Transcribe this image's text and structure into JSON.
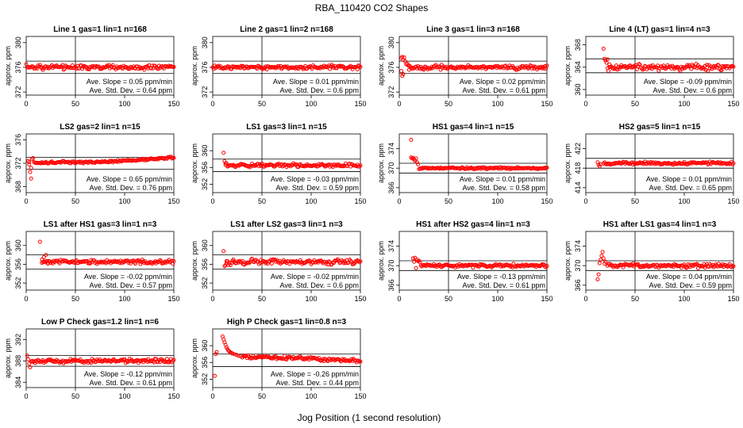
{
  "figure": {
    "title": "RBA_110420  CO2 Shapes",
    "xlabel": "Jog Position (1 second resolution)",
    "ylabel": "approx. ppm",
    "point_color": "#ff0000",
    "line_color": "#000000"
  },
  "chart_data": [
    {
      "type": "scatter",
      "title": "Line 1 gas=1 lin=1 n=168",
      "ylabel": "approx. ppm",
      "xlim": [
        0,
        150
      ],
      "ylim": [
        371.5,
        381
      ],
      "xticks": [
        0,
        50,
        100,
        150
      ],
      "yticks": [
        372,
        376,
        380
      ],
      "vline": 50,
      "hlines": [
        377,
        375
      ],
      "baseline": 376,
      "noise": 0.3,
      "start_x": 0,
      "slope_text": "Ave. Slope =  0.05  ppm/min",
      "std_text": "Ave. Std. Dev. =  0.64  ppm",
      "initial": [],
      "ramp": null,
      "start_seq": []
    },
    {
      "type": "scatter",
      "title": "Line 2 gas=1 lin=2 n=168",
      "ylabel": "approx. ppm",
      "xlim": [
        0,
        150
      ],
      "ylim": [
        371.5,
        381
      ],
      "xticks": [
        0,
        50,
        100,
        150
      ],
      "yticks": [
        372,
        376,
        380
      ],
      "vline": 50,
      "hlines": [
        377,
        375
      ],
      "baseline": 376,
      "noise": 0.25,
      "start_x": 0,
      "slope_text": "Ave. Slope =  0.01  ppm/min",
      "std_text": "Ave. Std. Dev. =  0.6  ppm",
      "initial": [],
      "ramp": null,
      "start_seq": []
    },
    {
      "type": "scatter",
      "title": "Line 3 gas=1 lin=3 n=168",
      "ylabel": "approx. ppm",
      "xlim": [
        0,
        150
      ],
      "ylim": [
        371.5,
        381
      ],
      "xticks": [
        0,
        50,
        100,
        150
      ],
      "yticks": [
        372,
        376,
        380
      ],
      "vline": 50,
      "hlines": [
        377,
        375
      ],
      "baseline": 376,
      "noise": 0.25,
      "start_x": 10,
      "slope_text": "Ave. Slope =  0.02  ppm/min",
      "std_text": "Ave. Std. Dev. =  0.61  ppm",
      "initial": [
        [
          2,
          377.5
        ],
        [
          3,
          377.7
        ],
        [
          4,
          377.2
        ],
        [
          5,
          377.6
        ],
        [
          6,
          377.0
        ],
        [
          7,
          376.5
        ],
        [
          3,
          374.6
        ],
        [
          4,
          374.9
        ],
        [
          2,
          375.4
        ],
        [
          8,
          376.6
        ],
        [
          9,
          376.3
        ],
        [
          10,
          375.6
        ]
      ],
      "ramp": null,
      "start_seq": []
    },
    {
      "type": "scatter",
      "title": "Line 4 (LT) gas=1 lin=4 n=3",
      "ylabel": "approx. ppm",
      "xlim": [
        0,
        150
      ],
      "ylim": [
        359,
        369.5
      ],
      "xticks": [
        0,
        50,
        100,
        150
      ],
      "yticks": [
        360,
        364,
        368
      ],
      "vline": 50,
      "hlines": [
        365.5,
        363
      ],
      "baseline": 364,
      "noise": 0.4,
      "start_x": 22,
      "slope_text": "Ave. Slope =  -0.09  ppm/min",
      "std_text": "Ave. Std. Dev. =  0.6  ppm",
      "initial": [
        [
          18,
          367.3
        ],
        [
          19,
          365.5
        ],
        [
          20,
          365.2
        ],
        [
          21,
          364.8
        ],
        [
          22,
          365.4
        ],
        [
          24,
          364.5
        ]
      ],
      "ramp": null,
      "start_seq": []
    },
    {
      "type": "scatter",
      "title": "LS2 gas=2 lin=1 n=15",
      "ylabel": "approx. ppm",
      "xlim": [
        0,
        150
      ],
      "ylim": [
        367,
        377
      ],
      "xticks": [
        0,
        50,
        100,
        150
      ],
      "yticks": [
        368,
        372,
        376
      ],
      "vline": 50,
      "hlines": [
        373,
        371
      ],
      "baseline": 372,
      "noise": 0.15,
      "start_x": 8,
      "slope_text": "Ave. Slope =  0.65  ppm/min",
      "std_text": "Ave. Std. Dev. =  0.76  ppm",
      "initial": [
        [
          2,
          372.4
        ],
        [
          3,
          371.8
        ],
        [
          4,
          370.5
        ],
        [
          5,
          369.4
        ],
        [
          6,
          372.7
        ],
        [
          7,
          372.9
        ],
        [
          3,
          372.2
        ],
        [
          5,
          371.2
        ]
      ],
      "ramp": [
        [
          8,
          372.1
        ],
        [
          80,
          372.2
        ],
        [
          150,
          373.0
        ]
      ],
      "start_seq": []
    },
    {
      "type": "scatter",
      "title": "LS1 gas=3 lin=1 n=15",
      "ylabel": "approx. ppm",
      "xlim": [
        0,
        150
      ],
      "ylim": [
        350,
        364
      ],
      "xticks": [
        0,
        50,
        100,
        150
      ],
      "yticks": [
        352,
        356,
        360
      ],
      "vline": 50,
      "hlines": [
        358,
        355
      ],
      "baseline": 356.5,
      "noise": 0.3,
      "start_x": 13,
      "slope_text": "Ave. Slope =  -0.03  ppm/min",
      "std_text": "Ave. Std. Dev. =  0.59  ppm",
      "initial": [
        [
          11,
          359.5
        ],
        [
          12,
          357.5
        ],
        [
          13,
          357.0
        ]
      ],
      "ramp": null,
      "start_seq": []
    },
    {
      "type": "scatter",
      "title": "HS1 gas=4 lin=1 n=15",
      "ylabel": "approx. ppm",
      "xlim": [
        0,
        150
      ],
      "ylim": [
        365,
        377
      ],
      "xticks": [
        0,
        50,
        100,
        150
      ],
      "yticks": [
        366,
        370,
        374
      ],
      "vline": 50,
      "hlines": [
        371,
        369
      ],
      "baseline": 370,
      "noise": 0.15,
      "start_x": 20,
      "slope_text": "Ave. Slope =  0.01  ppm/min",
      "std_text": "Ave. Std. Dev. =  0.58  ppm",
      "initial": [
        [
          12,
          375.8
        ],
        [
          12,
          372.2
        ],
        [
          13,
          372.0
        ],
        [
          14,
          372.1
        ],
        [
          15,
          371.8
        ],
        [
          16,
          371.5
        ],
        [
          17,
          372.0
        ],
        [
          18,
          371.2
        ],
        [
          19,
          370.8
        ]
      ],
      "ramp": null,
      "start_seq": []
    },
    {
      "type": "scatter",
      "title": "HS2 gas=5 lin=1 n=15",
      "ylabel": "approx. ppm",
      "xlim": [
        0,
        150
      ],
      "ylim": [
        413,
        425
      ],
      "xticks": [
        0,
        50,
        100,
        150
      ],
      "yticks": [
        414,
        418,
        422
      ],
      "vline": 50,
      "hlines": [
        420,
        418
      ],
      "baseline": 419,
      "noise": 0.2,
      "start_x": 18,
      "slope_text": "Ave. Slope =  0.01  ppm/min",
      "std_text": "Ave. Std. Dev. =  0.65  ppm",
      "initial": [
        [
          12,
          419.2
        ],
        [
          13,
          418.7
        ],
        [
          14,
          418.4
        ],
        [
          15,
          418.8
        ]
      ],
      "ramp": null,
      "start_seq": []
    },
    {
      "type": "scatter",
      "title": "LS1 after HS1 gas=3 lin=1 n=3",
      "ylabel": "approx. ppm",
      "xlim": [
        0,
        150
      ],
      "ylim": [
        350.5,
        363
      ],
      "xticks": [
        0,
        50,
        100,
        150
      ],
      "yticks": [
        352,
        356,
        360
      ],
      "vline": 50,
      "hlines": [
        358,
        355
      ],
      "baseline": 356.5,
      "noise": 0.35,
      "start_x": 16,
      "slope_text": "Ave. Slope =  -0.02  ppm/min",
      "std_text": "Ave. Std. Dev. =  0.57  ppm",
      "initial": [
        [
          14,
          360.8
        ],
        [
          16,
          357.0
        ],
        [
          18,
          357.5
        ],
        [
          20,
          358.0
        ],
        [
          22,
          356.4
        ]
      ],
      "ramp": null,
      "start_seq": []
    },
    {
      "type": "scatter",
      "title": "LS1 after LS2 gas=3 lin=1 n=3",
      "ylabel": "approx. ppm",
      "xlim": [
        0,
        150
      ],
      "ylim": [
        350.5,
        363
      ],
      "xticks": [
        0,
        50,
        100,
        150
      ],
      "yticks": [
        352,
        356,
        360
      ],
      "vline": 50,
      "hlines": [
        358,
        355
      ],
      "baseline": 356.5,
      "noise": 0.4,
      "start_x": 14,
      "slope_text": "Ave. Slope =  -0.02  ppm/min",
      "std_text": "Ave. Std. Dev. =  0.6  ppm",
      "initial": [
        [
          11,
          358.8
        ],
        [
          12,
          355.6
        ],
        [
          13,
          355.8
        ],
        [
          14,
          356.2
        ]
      ],
      "ramp": null,
      "start_seq": []
    },
    {
      "type": "scatter",
      "title": "HS1 after HS2 gas=4 lin=1 n=3",
      "ylabel": "approx. ppm",
      "xlim": [
        0,
        150
      ],
      "ylim": [
        365,
        377
      ],
      "xticks": [
        0,
        50,
        100,
        150
      ],
      "yticks": [
        366,
        370,
        374
      ],
      "vline": 50,
      "hlines": [
        371,
        369
      ],
      "baseline": 370,
      "noise": 0.25,
      "start_x": 22,
      "slope_text": "Ave. Slope =  -0.13  ppm/min",
      "std_text": "Ave. Std. Dev. =  0.61  ppm",
      "initial": [
        [
          14,
          371.5
        ],
        [
          15,
          370.8
        ],
        [
          16,
          371.6
        ],
        [
          17,
          369.5
        ],
        [
          18,
          371.2
        ],
        [
          19,
          370.9
        ],
        [
          20,
          371.0
        ],
        [
          21,
          370.7
        ]
      ],
      "ramp": null,
      "start_seq": []
    },
    {
      "type": "scatter",
      "title": "HS1 after LS1 gas=4 lin=1 n=3",
      "ylabel": "approx. ppm",
      "xlim": [
        0,
        150
      ],
      "ylim": [
        365,
        377
      ],
      "xticks": [
        0,
        50,
        100,
        150
      ],
      "yticks": [
        366,
        370,
        374
      ],
      "vline": 50,
      "hlines": [
        371,
        369
      ],
      "baseline": 370,
      "noise": 0.3,
      "start_x": 22,
      "slope_text": "Ave. Slope =  0.04  ppm/min",
      "std_text": "Ave. Std. Dev. =  0.59  ppm",
      "initial": [
        [
          12,
          367.2
        ],
        [
          13,
          368.2
        ],
        [
          14,
          370.5
        ],
        [
          15,
          371.2
        ],
        [
          16,
          372.0
        ],
        [
          17,
          372.8
        ],
        [
          18,
          371.5
        ],
        [
          19,
          370.4
        ],
        [
          20,
          370.8
        ]
      ],
      "ramp": null,
      "start_seq": []
    },
    {
      "type": "scatter",
      "title": "Low P Check gas=1.2 lin=1 n=6",
      "ylabel": "approx. ppm",
      "xlim": [
        0,
        150
      ],
      "ylim": [
        383,
        394
      ],
      "xticks": [
        0,
        50,
        100,
        150
      ],
      "yticks": [
        384,
        388,
        392
      ],
      "vline": 50,
      "hlines": [
        389,
        387
      ],
      "baseline": 388,
      "noise": 0.3,
      "start_x": 5,
      "slope_text": "Ave. Slope =  -0.12  ppm/min",
      "std_text": "Ave. Std. Dev. =  0.61  ppm",
      "initial": [
        [
          1,
          389.0
        ],
        [
          2,
          388.3
        ],
        [
          3,
          387.5
        ],
        [
          4,
          386.8
        ]
      ],
      "ramp": null,
      "start_seq": []
    },
    {
      "type": "scatter",
      "title": "High P Check gas=1 lin=0.8 n=3",
      "ylabel": "approx. ppm",
      "xlim": [
        0,
        150
      ],
      "ylim": [
        350,
        364
      ],
      "xticks": [
        0,
        50,
        100,
        150
      ],
      "yticks": [
        352,
        356,
        360
      ],
      "vline": 50,
      "hlines": [
        358,
        355
      ],
      "baseline": 356.5,
      "noise": 0.3,
      "start_x": 30,
      "slope_text": "Ave. Slope =  -0.26  ppm/min",
      "std_text": "Ave. Std. Dev. =  0.44  ppm",
      "initial": [
        [
          2,
          352.8
        ],
        [
          3,
          358.0
        ],
        [
          4,
          358.5
        ]
      ],
      "ramp": [
        [
          30,
          357.4
        ],
        [
          150,
          356.5
        ]
      ],
      "start_seq": [
        [
          10,
          362.2
        ],
        [
          11,
          361.5
        ],
        [
          12,
          360.8
        ],
        [
          13,
          360.2
        ],
        [
          14,
          359.6
        ],
        [
          15,
          359.2
        ],
        [
          16,
          358.8
        ],
        [
          17,
          358.6
        ],
        [
          18,
          358.4
        ],
        [
          19,
          358.3
        ],
        [
          20,
          358.1
        ],
        [
          22,
          358.0
        ],
        [
          24,
          357.8
        ],
        [
          26,
          357.6
        ],
        [
          28,
          357.5
        ]
      ]
    }
  ]
}
